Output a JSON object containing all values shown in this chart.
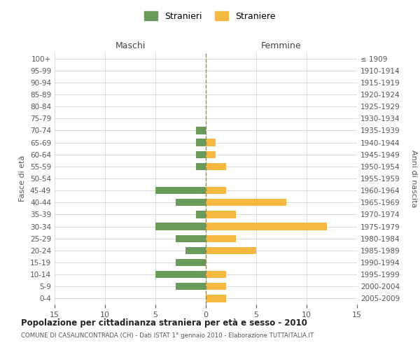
{
  "age_groups": [
    "100+",
    "95-99",
    "90-94",
    "85-89",
    "80-84",
    "75-79",
    "70-74",
    "65-69",
    "60-64",
    "55-59",
    "50-54",
    "45-49",
    "40-44",
    "35-39",
    "30-34",
    "25-29",
    "20-24",
    "15-19",
    "10-14",
    "5-9",
    "0-4"
  ],
  "birth_years": [
    "≤ 1909",
    "1910-1914",
    "1915-1919",
    "1920-1924",
    "1925-1929",
    "1930-1934",
    "1935-1939",
    "1940-1944",
    "1945-1949",
    "1950-1954",
    "1955-1959",
    "1960-1964",
    "1965-1969",
    "1970-1974",
    "1975-1979",
    "1980-1984",
    "1985-1989",
    "1990-1994",
    "1995-1999",
    "2000-2004",
    "2005-2009"
  ],
  "maschi": [
    0,
    0,
    0,
    0,
    0,
    0,
    1,
    1,
    1,
    1,
    0,
    5,
    3,
    1,
    5,
    3,
    2,
    3,
    5,
    3,
    0
  ],
  "femmine": [
    0,
    0,
    0,
    0,
    0,
    0,
    0,
    1,
    1,
    2,
    0,
    2,
    8,
    3,
    12,
    3,
    5,
    0,
    2,
    2,
    2
  ],
  "color_maschi": "#6a9a5a",
  "color_femmine": "#f5b942",
  "color_dashed_line": "#8a8a5a",
  "title": "Popolazione per cittadinanza straniera per età e sesso - 2010",
  "subtitle": "COMUNE DI CASALINCONTRADA (CH) - Dati ISTAT 1° gennaio 2010 - Elaborazione TUTTAITALIA.IT",
  "ylabel_left": "Fasce di età",
  "ylabel_right": "Anni di nascita",
  "xlabel_left": "Maschi",
  "xlabel_right": "Femmine",
  "legend_maschi": "Stranieri",
  "legend_femmine": "Straniere",
  "xlim": 15,
  "bg_color": "#ffffff",
  "grid_color": "#cccccc"
}
